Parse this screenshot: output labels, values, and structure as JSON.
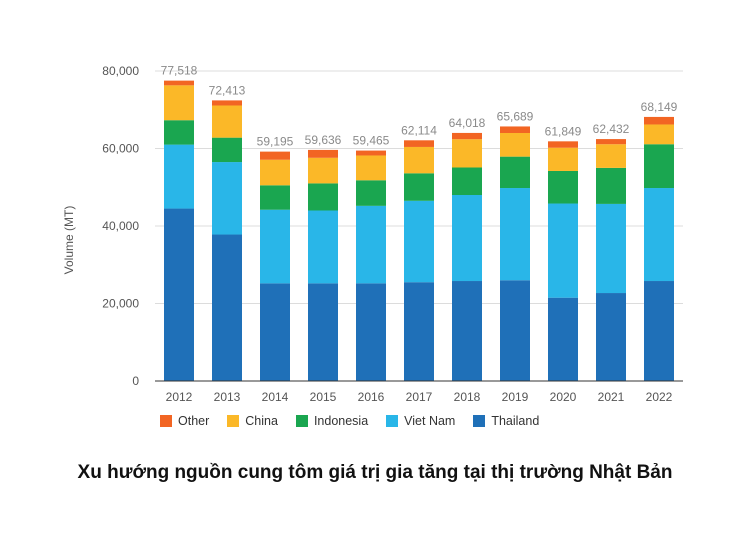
{
  "chart_data": {
    "type": "bar",
    "stacked": true,
    "title": "Xu hướng nguồn cung tôm giá trị gia tăng tại thị trường Nhật Bản",
    "ylabel": "Volume (MT)",
    "xlabel": "",
    "ylim": [
      0,
      80000
    ],
    "yticks": [
      0,
      20000,
      40000,
      60000,
      80000
    ],
    "ytick_labels": [
      "0",
      "20,000",
      "40,000",
      "60,000",
      "80,000"
    ],
    "grid": true,
    "legend_position": "bottom",
    "categories": [
      "2012",
      "2013",
      "2014",
      "2015",
      "2016",
      "2017",
      "2018",
      "2019",
      "2020",
      "2021",
      "2022"
    ],
    "totals": [
      77518,
      72413,
      59195,
      59636,
      59465,
      62114,
      64018,
      65689,
      61849,
      62432,
      68149
    ],
    "total_labels": [
      "77,518",
      "72,413",
      "59,195",
      "59,636",
      "59,465",
      "62,114",
      "64,018",
      "65,689",
      "61,849",
      "62,432",
      "68,149"
    ],
    "series": [
      {
        "name": "Thailand",
        "color": "#1f70b8",
        "values": [
          44500,
          37800,
          25200,
          25200,
          25200,
          25500,
          25800,
          26000,
          21500,
          22700,
          25800
        ]
      },
      {
        "name": "Viet Nam",
        "color": "#29b6e8",
        "values": [
          16500,
          18700,
          19000,
          18800,
          20000,
          21000,
          22200,
          23800,
          24300,
          23000,
          24000
        ]
      },
      {
        "name": "Indonesia",
        "color": "#1aa650",
        "values": [
          6300,
          6300,
          6300,
          7000,
          6600,
          7100,
          7100,
          8100,
          8400,
          9300,
          11300
        ]
      },
      {
        "name": "China",
        "color": "#fbb828",
        "values": [
          9000,
          8300,
          6600,
          6600,
          6400,
          6800,
          7300,
          6100,
          6000,
          6100,
          5100
        ]
      },
      {
        "name": "Other",
        "color": "#f26523",
        "values": [
          1218,
          1313,
          2095,
          2036,
          1265,
          1714,
          1618,
          1689,
          1649,
          1332,
          1949
        ]
      }
    ]
  },
  "legend_order": [
    "Other",
    "China",
    "Indonesia",
    "Viet Nam",
    "Thailand"
  ],
  "caption": "Xu hướng nguồn cung tôm giá trị gia tăng tại thị trường Nhật Bản"
}
